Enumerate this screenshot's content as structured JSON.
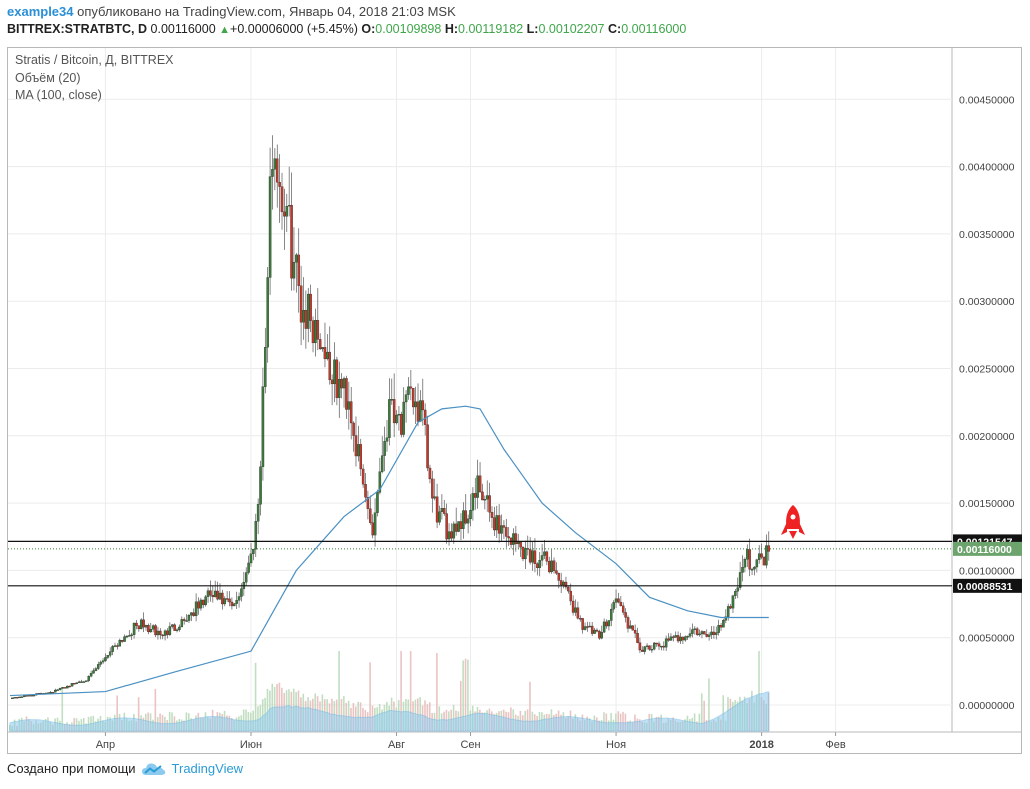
{
  "header": {
    "author": "example34",
    "published_text": "опубликовано на TradingView.com, Январь 04, 2018 21:03 MSK",
    "symbol": "BITTREX:STRATBTC, D",
    "last_price": "0.00116000",
    "change_icon": "triangle-up-icon",
    "change": "+0.00006000 (+5.45%)",
    "o_label": "O:",
    "o_value": "0.00109898",
    "h_label": "H:",
    "h_value": "0.00119182",
    "l_label": "L:",
    "l_value": "0.00102207",
    "c_label": "C:",
    "c_value": "0.00116000"
  },
  "legend": {
    "title": "Stratis / Bitcoin, Д, BITTREX",
    "volume": "Объём (20)",
    "ma": "MA (100, close)"
  },
  "footer": {
    "created_with": "Создано при помощи",
    "brand": "TradingView",
    "brand_icon": "tradingview-cloud-icon"
  },
  "colors": {
    "up": "#3b7a3b",
    "down": "#c0392b",
    "ma": "#4a90c2",
    "volume_ma": "#8ec9ee",
    "current_price_badge": "#6da36d",
    "rocket": "#ee2222",
    "accent": "#2a8fd6"
  },
  "chart_data": {
    "type": "candlestick",
    "title": "Stratis / Bitcoin, Д, BITTREX",
    "x_ticks": [
      "Апр",
      "Июн",
      "Авг",
      "Сен",
      "Ноя",
      "2018",
      "Фев"
    ],
    "y_ticks": [
      "0.00000000",
      "0.00050000",
      "0.00100000",
      "0.00150000",
      "0.00200000",
      "0.00250000",
      "0.00300000",
      "0.00350000",
      "0.00400000",
      "0.00450000"
    ],
    "ylim": [
      -0.0002,
      0.0049
    ],
    "grid": true,
    "horizontal_lines": [
      {
        "value": 0.00121547,
        "label": "0.00121547"
      },
      {
        "value": 0.00088531,
        "label": "0.00088531"
      }
    ],
    "current_price": {
      "value": 0.00116,
      "label": "0.00116000"
    },
    "annotation_icon": "rocket-icon",
    "price_path": {
      "x": [
        "2017-02-20",
        "2017-03-10",
        "2017-03-25",
        "2017-04-05",
        "2017-04-15",
        "2017-04-25",
        "2017-05-05",
        "2017-05-15",
        "2017-05-25",
        "2017-06-01",
        "2017-06-04",
        "2017-06-07",
        "2017-06-10",
        "2017-06-14",
        "2017-06-18",
        "2017-06-22",
        "2017-06-26",
        "2017-07-01",
        "2017-07-06",
        "2017-07-12",
        "2017-07-17",
        "2017-07-22",
        "2017-07-26",
        "2017-07-30",
        "2017-08-03",
        "2017-08-08",
        "2017-08-12",
        "2017-08-16",
        "2017-08-22",
        "2017-08-30",
        "2017-09-04",
        "2017-09-10",
        "2017-09-15",
        "2017-09-20",
        "2017-09-27",
        "2017-10-05",
        "2017-10-12",
        "2017-10-18",
        "2017-10-25",
        "2017-11-01",
        "2017-11-06",
        "2017-11-12",
        "2017-11-20",
        "2017-11-27",
        "2017-12-04",
        "2017-12-10",
        "2017-12-15",
        "2017-12-20",
        "2017-12-25",
        "2017-12-30",
        "2018-01-04"
      ],
      "close": [
        5e-05,
        0.0001,
        0.0002,
        0.00045,
        0.0006,
        0.00052,
        0.00065,
        0.00082,
        0.00072,
        0.0011,
        0.0015,
        0.0027,
        0.0042,
        0.0038,
        0.0034,
        0.003,
        0.0029,
        0.0027,
        0.0024,
        0.0023,
        0.0017,
        0.0013,
        0.0019,
        0.0023,
        0.0021,
        0.0023,
        0.0021,
        0.0015,
        0.0013,
        0.0014,
        0.0016,
        0.0014,
        0.0013,
        0.0012,
        0.0011,
        0.00105,
        0.0008,
        0.0006,
        0.0005,
        0.0008,
        0.0006,
        0.0004,
        0.00045,
        0.0005,
        0.00055,
        0.0005,
        0.0006,
        0.0008,
        0.0011,
        0.00105,
        0.00116
      ]
    },
    "ma_100": {
      "x": [
        "2017-02-20",
        "2017-04-01",
        "2017-05-01",
        "2017-06-01",
        "2017-06-20",
        "2017-07-10",
        "2017-07-25",
        "2017-08-10",
        "2017-08-20",
        "2017-08-30",
        "2017-09-05",
        "2017-09-15",
        "2017-10-01",
        "2017-10-15",
        "2017-11-01",
        "2017-11-15",
        "2017-12-01",
        "2017-12-15",
        "2018-01-04"
      ],
      "values": [
        7e-05,
        0.0001,
        0.00025,
        0.0004,
        0.001,
        0.0014,
        0.0016,
        0.0021,
        0.0022,
        0.00222,
        0.0022,
        0.0019,
        0.0015,
        0.00128,
        0.00105,
        0.0008,
        0.0007,
        0.00065,
        0.00065
      ]
    },
    "volume": {
      "note": "relative volume bars at bottom of pane",
      "ma_20_visible": true
    }
  }
}
